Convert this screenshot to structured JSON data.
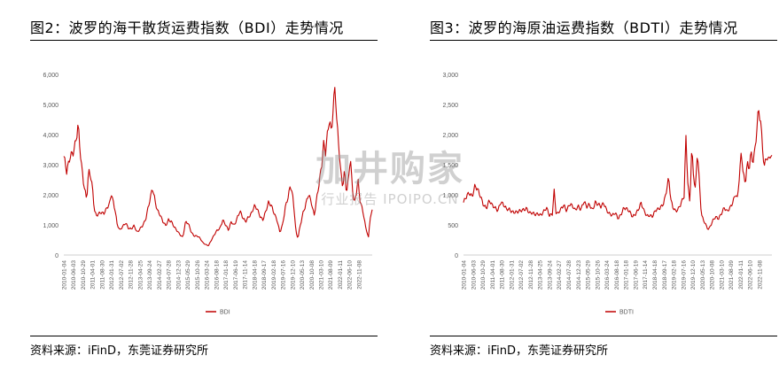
{
  "charts": [
    {
      "fig_title": "图2：波罗的海干散货运费指数（BDI）走势情况",
      "source": "资料来源：iFinD，东莞证券研究所",
      "chart_data": {
        "type": "line",
        "series": [
          {
            "name": "BDI",
            "color": "#c00000"
          }
        ],
        "ylim": [
          0,
          6000
        ],
        "yticks": [
          "0",
          "1,000",
          "2,000",
          "3,000",
          "4,000",
          "5,000",
          "6,000"
        ],
        "xticks": [
          "2010-01-04",
          "2010-06-03",
          "2010-10-29",
          "2011-04-01",
          "2011-08-30",
          "2012-01-31",
          "2012-07-02",
          "2012-11-28",
          "2013-04-25",
          "2013-09-24",
          "2014-02-27",
          "2014-07-28",
          "2014-12-23",
          "2015-05-29",
          "2015-10-26",
          "2016-03-24",
          "2016-08-18",
          "2017-01-18",
          "2017-06-19",
          "2017-11-14",
          "2018-04-18",
          "2018-09-17",
          "2019-02-18",
          "2019-07-16",
          "2019-12-10",
          "2020-05-13",
          "2020-10-08",
          "2021-03-10",
          "2021-08-09",
          "2022-01-11",
          "2022-06-10",
          "2022-11-08"
        ],
        "anchors": [
          [
            0,
            3200
          ],
          [
            0.3,
            2700
          ],
          [
            0.7,
            3400
          ],
          [
            1.0,
            3500
          ],
          [
            1.3,
            3800
          ],
          [
            1.5,
            4200
          ],
          [
            1.8,
            3100
          ],
          [
            2.1,
            2400
          ],
          [
            2.4,
            1900
          ],
          [
            2.6,
            2800
          ],
          [
            2.8,
            2600
          ],
          [
            3.0,
            2200
          ],
          [
            3.2,
            1500
          ],
          [
            3.4,
            1300
          ],
          [
            3.6,
            1400
          ],
          [
            3.9,
            1450
          ],
          [
            4.2,
            1350
          ],
          [
            4.5,
            1500
          ],
          [
            4.8,
            1700
          ],
          [
            5.0,
            2100
          ],
          [
            5.2,
            1800
          ],
          [
            5.4,
            1500
          ],
          [
            5.6,
            1000
          ],
          [
            5.9,
            800
          ],
          [
            6.2,
            950
          ],
          [
            6.5,
            1100
          ],
          [
            6.8,
            900
          ],
          [
            7.1,
            850
          ],
          [
            7.4,
            950
          ],
          [
            7.7,
            750
          ],
          [
            8.0,
            900
          ],
          [
            8.3,
            1000
          ],
          [
            8.6,
            1150
          ],
          [
            8.9,
            1600
          ],
          [
            9.1,
            1900
          ],
          [
            9.3,
            2300
          ],
          [
            9.5,
            2000
          ],
          [
            9.8,
            1500
          ],
          [
            10.1,
            1300
          ],
          [
            10.4,
            1100
          ],
          [
            10.7,
            1000
          ],
          [
            11.0,
            1200
          ],
          [
            11.3,
            1100
          ],
          [
            11.6,
            900
          ],
          [
            11.9,
            800
          ],
          [
            12.2,
            700
          ],
          [
            12.5,
            600
          ],
          [
            12.8,
            1100
          ],
          [
            13.1,
            1000
          ],
          [
            13.4,
            750
          ],
          [
            13.7,
            650
          ],
          [
            14.0,
            650
          ],
          [
            14.3,
            550
          ],
          [
            14.6,
            400
          ],
          [
            14.9,
            350
          ],
          [
            15.2,
            320
          ],
          [
            15.5,
            500
          ],
          [
            15.8,
            650
          ],
          [
            16.1,
            800
          ],
          [
            16.4,
            900
          ],
          [
            16.7,
            1200
          ],
          [
            17.0,
            1000
          ],
          [
            17.3,
            800
          ],
          [
            17.6,
            1100
          ],
          [
            17.9,
            1000
          ],
          [
            18.2,
            1250
          ],
          [
            18.5,
            1450
          ],
          [
            18.8,
            1200
          ],
          [
            19.1,
            1100
          ],
          [
            19.4,
            1300
          ],
          [
            19.7,
            1400
          ],
          [
            20.0,
            1600
          ],
          [
            20.3,
            1500
          ],
          [
            20.6,
            1300
          ],
          [
            20.9,
            1200
          ],
          [
            21.2,
            1450
          ],
          [
            21.5,
            1700
          ],
          [
            21.8,
            1600
          ],
          [
            22.1,
            1400
          ],
          [
            22.4,
            1200
          ],
          [
            22.7,
            750
          ],
          [
            23.0,
            1000
          ],
          [
            23.3,
            1600
          ],
          [
            23.6,
            2000
          ],
          [
            23.8,
            2400
          ],
          [
            24.0,
            2100
          ],
          [
            24.2,
            1500
          ],
          [
            24.4,
            700
          ],
          [
            24.6,
            550
          ],
          [
            24.8,
            900
          ],
          [
            25.1,
            1400
          ],
          [
            25.4,
            1700
          ],
          [
            25.7,
            2000
          ],
          [
            26.0,
            1700
          ],
          [
            26.3,
            1300
          ],
          [
            26.6,
            2000
          ],
          [
            26.9,
            2600
          ],
          [
            27.1,
            3000
          ],
          [
            27.3,
            3600
          ],
          [
            27.5,
            3300
          ],
          [
            27.7,
            4000
          ],
          [
            27.9,
            4600
          ],
          [
            28.1,
            4200
          ],
          [
            28.3,
            5000
          ],
          [
            28.5,
            5600
          ],
          [
            28.7,
            4200
          ],
          [
            28.9,
            3500
          ],
          [
            29.1,
            2700
          ],
          [
            29.3,
            2300
          ],
          [
            29.5,
            2900
          ],
          [
            29.7,
            2100
          ],
          [
            29.9,
            2500
          ],
          [
            30.1,
            3200
          ],
          [
            30.3,
            2200
          ],
          [
            30.5,
            1700
          ],
          [
            30.7,
            2000
          ],
          [
            30.9,
            2600
          ],
          [
            31.1,
            1900
          ],
          [
            31.3,
            1600
          ],
          [
            31.5,
            1300
          ],
          [
            31.7,
            900
          ],
          [
            31.9,
            700
          ],
          [
            32.0,
            550
          ],
          [
            32.2,
            1300
          ],
          [
            32.4,
            1500
          ]
        ]
      }
    },
    {
      "fig_title": "图3：波罗的海原油运费指数（BDTI）走势情况",
      "source": "资料来源：iFinD，东莞证券研究所",
      "chart_data": {
        "type": "line",
        "series": [
          {
            "name": "BDTI",
            "color": "#c00000"
          }
        ],
        "ylim": [
          0,
          3000
        ],
        "yticks": [
          "0",
          "500",
          "1,000",
          "1,500",
          "2,000",
          "2,500",
          "3,000"
        ],
        "xticks": [
          "2010-01-04",
          "2010-06-03",
          "2010-10-29",
          "2011-04-01",
          "2011-08-30",
          "2012-01-31",
          "2012-07-02",
          "2012-11-28",
          "2013-04-25",
          "2013-09-24",
          "2014-02-27",
          "2014-07-28",
          "2014-12-23",
          "2015-05-29",
          "2015-10-26",
          "2016-03-24",
          "2016-08-18",
          "2017-01-18",
          "2017-06-19",
          "2017-11-14",
          "2018-04-18",
          "2018-09-17",
          "2019-02-18",
          "2019-07-16",
          "2019-12-10",
          "2020-05-13",
          "2020-10-08",
          "2021-03-10",
          "2021-08-09",
          "2022-01-11",
          "2022-06-10",
          "2022-11-08"
        ],
        "anchors": [
          [
            0,
            850
          ],
          [
            0.3,
            950
          ],
          [
            0.6,
            1050
          ],
          [
            0.9,
            1000
          ],
          [
            1.2,
            1150
          ],
          [
            1.5,
            1050
          ],
          [
            1.8,
            950
          ],
          [
            2.1,
            850
          ],
          [
            2.4,
            800
          ],
          [
            2.7,
            900
          ],
          [
            3.0,
            800
          ],
          [
            3.3,
            780
          ],
          [
            3.6,
            760
          ],
          [
            3.9,
            900
          ],
          [
            4.2,
            820
          ],
          [
            4.5,
            740
          ],
          [
            4.8,
            760
          ],
          [
            5.1,
            740
          ],
          [
            5.4,
            720
          ],
          [
            5.7,
            700
          ],
          [
            6.0,
            720
          ],
          [
            6.3,
            760
          ],
          [
            6.6,
            800
          ],
          [
            6.9,
            700
          ],
          [
            7.2,
            680
          ],
          [
            7.5,
            660
          ],
          [
            7.8,
            700
          ],
          [
            8.1,
            680
          ],
          [
            8.4,
            720
          ],
          [
            8.7,
            760
          ],
          [
            9.0,
            650
          ],
          [
            9.3,
            700
          ],
          [
            9.5,
            1100
          ],
          [
            9.7,
            700
          ],
          [
            9.9,
            680
          ],
          [
            10.2,
            740
          ],
          [
            10.5,
            830
          ],
          [
            10.8,
            760
          ],
          [
            11.1,
            860
          ],
          [
            11.4,
            800
          ],
          [
            11.7,
            720
          ],
          [
            12.0,
            820
          ],
          [
            12.3,
            780
          ],
          [
            12.6,
            900
          ],
          [
            12.9,
            780
          ],
          [
            13.2,
            820
          ],
          [
            13.5,
            760
          ],
          [
            13.8,
            900
          ],
          [
            14.1,
            840
          ],
          [
            14.4,
            780
          ],
          [
            14.7,
            850
          ],
          [
            15.0,
            760
          ],
          [
            15.3,
            700
          ],
          [
            15.6,
            650
          ],
          [
            15.9,
            680
          ],
          [
            16.2,
            600
          ],
          [
            16.5,
            700
          ],
          [
            16.8,
            800
          ],
          [
            17.1,
            750
          ],
          [
            17.4,
            700
          ],
          [
            17.7,
            640
          ],
          [
            18.0,
            700
          ],
          [
            18.3,
            760
          ],
          [
            18.6,
            840
          ],
          [
            18.9,
            720
          ],
          [
            19.2,
            660
          ],
          [
            19.5,
            680
          ],
          [
            19.8,
            640
          ],
          [
            20.1,
            720
          ],
          [
            20.4,
            750
          ],
          [
            20.7,
            820
          ],
          [
            21.0,
            900
          ],
          [
            21.3,
            1100
          ],
          [
            21.5,
            1250
          ],
          [
            21.7,
            900
          ],
          [
            21.9,
            800
          ],
          [
            22.2,
            750
          ],
          [
            22.5,
            780
          ],
          [
            22.8,
            850
          ],
          [
            23.1,
            950
          ],
          [
            23.3,
            1950
          ],
          [
            23.5,
            1200
          ],
          [
            23.7,
            900
          ],
          [
            23.9,
            1800
          ],
          [
            24.1,
            1300
          ],
          [
            24.3,
            1050
          ],
          [
            24.5,
            1700
          ],
          [
            24.7,
            1200
          ],
          [
            24.9,
            700
          ],
          [
            25.1,
            600
          ],
          [
            25.3,
            550
          ],
          [
            25.5,
            450
          ],
          [
            25.7,
            420
          ],
          [
            25.9,
            480
          ],
          [
            26.1,
            560
          ],
          [
            26.4,
            650
          ],
          [
            26.7,
            620
          ],
          [
            27.0,
            680
          ],
          [
            27.3,
            760
          ],
          [
            27.6,
            720
          ],
          [
            27.9,
            800
          ],
          [
            28.2,
            900
          ],
          [
            28.5,
            1000
          ],
          [
            28.7,
            900
          ],
          [
            28.9,
            1300
          ],
          [
            29.1,
            1700
          ],
          [
            29.3,
            1400
          ],
          [
            29.5,
            1200
          ],
          [
            29.7,
            1550
          ],
          [
            29.9,
            1400
          ],
          [
            30.1,
            1650
          ],
          [
            30.3,
            1500
          ],
          [
            30.5,
            1700
          ],
          [
            30.7,
            2100
          ],
          [
            30.9,
            2500
          ],
          [
            31.1,
            2300
          ],
          [
            31.3,
            1800
          ],
          [
            31.5,
            1400
          ],
          [
            31.7,
            1600
          ],
          [
            31.9,
            1550
          ],
          [
            32.1,
            1700
          ],
          [
            32.3,
            1650
          ]
        ]
      }
    }
  ],
  "watermark": {
    "main": "加井购家",
    "sub": "行业报告 IPOIPO.CN"
  }
}
